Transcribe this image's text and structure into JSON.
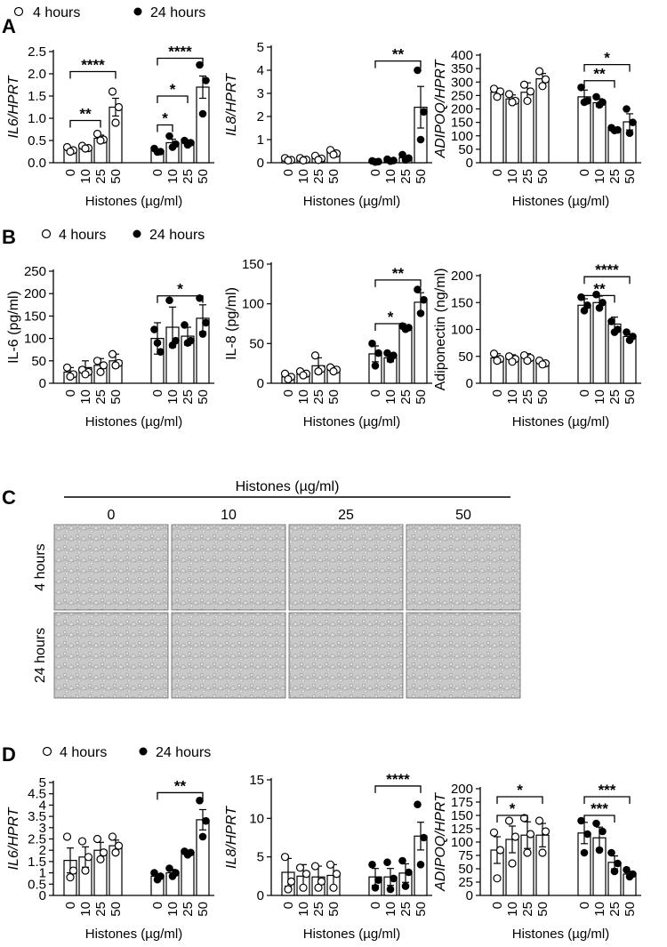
{
  "legend": {
    "open_label": "4 hours",
    "closed_label": "24 hours"
  },
  "panel_letters": {
    "A": "A",
    "B": "B",
    "C": "C",
    "D": "D"
  },
  "xlabel": "Histones (µg/ml)",
  "panel_c": {
    "header": "Histones (µg/ml)",
    "columns": [
      "0",
      "10",
      "25",
      "50"
    ],
    "rows": [
      "4 hours",
      "24 hours"
    ]
  },
  "chart_data": [
    {
      "id": "A1",
      "type": "bar",
      "ylabel": "IL6/HPRT",
      "italic": true,
      "ylim": [
        0,
        2.5
      ],
      "yticks": [
        0,
        0.5,
        1,
        1.5,
        2,
        2.5
      ],
      "yticklabels": [
        "0.0",
        "0.5",
        "1.0",
        "1.5",
        "2.0",
        "2.5"
      ],
      "categories": [
        "0",
        "10",
        "25",
        "50"
      ],
      "series": [
        {
          "name": "4 hours",
          "values": [
            0.3,
            0.35,
            0.55,
            1.25
          ],
          "err": [
            0.05,
            0.04,
            0.07,
            0.2
          ],
          "points": [
            [
              0.35,
              0.28,
              0.25
            ],
            [
              0.38,
              0.33,
              0.32
            ],
            [
              0.65,
              0.52,
              0.5
            ],
            [
              1.6,
              1.25,
              0.9
            ]
          ]
        },
        {
          "name": "24 hours",
          "values": [
            0.27,
            0.45,
            0.45,
            1.7
          ],
          "err": [
            0.04,
            0.08,
            0.06,
            0.25
          ],
          "points": [
            [
              0.32,
              0.25,
              0.24
            ],
            [
              0.6,
              0.42,
              0.35
            ],
            [
              0.5,
              0.45,
              0.4
            ],
            [
              2.2,
              1.85,
              1.1
            ]
          ]
        }
      ],
      "sig": [
        {
          "s": 0,
          "a": 0,
          "b": 2,
          "label": "**",
          "level": 0.95
        },
        {
          "s": 0,
          "a": 0,
          "b": 3,
          "label": "****",
          "level": 2.05
        },
        {
          "s": 1,
          "a": 0,
          "b": 1,
          "label": "*",
          "level": 0.85
        },
        {
          "s": 1,
          "a": 0,
          "b": 2,
          "label": "*",
          "level": 1.5
        },
        {
          "s": 1,
          "a": 0,
          "b": 3,
          "label": "****",
          "level": 2.35
        }
      ]
    },
    {
      "id": "A2",
      "type": "bar",
      "ylabel": "IL8/HPRT",
      "italic": true,
      "ylim": [
        0,
        5
      ],
      "yticks": [
        0,
        1,
        2,
        3,
        4,
        5
      ],
      "yticklabels": [
        "0",
        "1",
        "2",
        "3",
        "4",
        "5"
      ],
      "categories": [
        "0",
        "10",
        "25",
        "50"
      ],
      "series": [
        {
          "name": "4 hours",
          "values": [
            0.15,
            0.15,
            0.2,
            0.45
          ],
          "err": [
            0.05,
            0.05,
            0.07,
            0.1
          ],
          "points": [
            [
              0.2,
              0.12,
              0.1
            ],
            [
              0.2,
              0.13,
              0.1
            ],
            [
              0.3,
              0.18,
              0.12
            ],
            [
              0.55,
              0.4,
              0.35
            ]
          ]
        },
        {
          "name": "24 hours",
          "values": [
            0.05,
            0.1,
            0.22,
            2.4
          ],
          "err": [
            0.02,
            0.03,
            0.08,
            0.9
          ],
          "points": [
            [
              0.08,
              0.05,
              0.03
            ],
            [
              0.15,
              0.1,
              0.07
            ],
            [
              0.35,
              0.2,
              0.12
            ],
            [
              4.0,
              2.2,
              1.0
            ]
          ]
        }
      ],
      "sig": [
        {
          "s": 1,
          "a": 0,
          "b": 3,
          "label": "**",
          "level": 4.4
        }
      ]
    },
    {
      "id": "A3",
      "type": "bar",
      "ylabel": "ADIPOQ/HPRT",
      "italic": true,
      "ylim": [
        0,
        400
      ],
      "yticks": [
        0,
        50,
        100,
        150,
        200,
        250,
        300,
        350,
        400
      ],
      "yticklabels": [
        "0",
        "50",
        "100",
        "150",
        "200",
        "250",
        "300",
        "350",
        "400"
      ],
      "categories": [
        "0",
        "10",
        "25",
        "50"
      ],
      "series": [
        {
          "name": "4 hours",
          "values": [
            262,
            237,
            262,
            312
          ],
          "err": [
            15,
            15,
            35,
            20
          ],
          "points": [
            [
              275,
              265,
              245
            ],
            [
              255,
              230,
              225
            ],
            [
              290,
              265,
              230
            ],
            [
              340,
              310,
              285
            ]
          ]
        },
        {
          "name": "24 hours",
          "values": [
            245,
            223,
            125,
            152
          ],
          "err": [
            25,
            15,
            5,
            30
          ],
          "points": [
            [
              280,
              230,
              225
            ],
            [
              245,
              225,
              215
            ],
            [
              130,
              122,
              120
            ],
            [
              200,
              150,
              110
            ]
          ]
        }
      ],
      "sig": [
        {
          "s": 1,
          "a": 0,
          "b": 2,
          "label": "**",
          "level": 305
        },
        {
          "s": 1,
          "a": 0,
          "b": 3,
          "label": "*",
          "level": 365
        }
      ]
    },
    {
      "id": "B1",
      "type": "bar",
      "ylabel": "IL-6 (pg/ml)",
      "italic": false,
      "ylim": [
        0,
        250
      ],
      "yticks": [
        0,
        50,
        100,
        150,
        200,
        250
      ],
      "yticklabels": [
        "0",
        "50",
        "100",
        "150",
        "200",
        "250"
      ],
      "categories": [
        "0",
        "10",
        "25",
        "50"
      ],
      "series": [
        {
          "name": "4 hours",
          "values": [
            25,
            35,
            40,
            50
          ],
          "err": [
            10,
            15,
            15,
            15
          ],
          "points": [
            [
              35,
              20,
              15
            ],
            [
              30,
              25,
              20
            ],
            [
              50,
              40,
              25
            ],
            [
              65,
              45,
              40
            ]
          ]
        },
        {
          "name": "24 hours",
          "values": [
            100,
            125,
            105,
            145
          ],
          "err": [
            35,
            45,
            20,
            30
          ],
          "points": [
            [
              120,
              70,
              90
            ],
            [
              185,
              95,
              85
            ],
            [
              130,
              95,
              90
            ],
            [
              190,
              135,
              110
            ]
          ]
        }
      ],
      "sig": [
        {
          "s": 1,
          "a": 0,
          "b": 3,
          "label": "*",
          "level": 195
        }
      ]
    },
    {
      "id": "B2",
      "type": "bar",
      "ylabel": "IL-8 (pg/ml)",
      "italic": false,
      "ylim": [
        0,
        150
      ],
      "yticks": [
        0,
        50,
        100,
        150
      ],
      "yticklabels": [
        "0",
        "50",
        "100",
        "150"
      ],
      "categories": [
        "0",
        "10",
        "25",
        "50"
      ],
      "series": [
        {
          "name": "4 hours",
          "values": [
            8,
            12,
            22,
            18
          ],
          "err": [
            3,
            4,
            10,
            3
          ],
          "points": [
            [
              12,
              8,
              5
            ],
            [
              15,
              12,
              10
            ],
            [
              35,
              18,
              15
            ],
            [
              20,
              17,
              15
            ]
          ]
        },
        {
          "name": "24 hours",
          "values": [
            37,
            32,
            70,
            102
          ],
          "err": [
            10,
            5,
            2,
            12
          ],
          "points": [
            [
              50,
              38,
              22
            ],
            [
              38,
              35,
              30
            ],
            [
              72,
              70,
              68
            ],
            [
              118,
              105,
              88
            ]
          ]
        }
      ],
      "sig": [
        {
          "s": 1,
          "a": 0,
          "b": 2,
          "label": "*",
          "level": 75
        },
        {
          "s": 1,
          "a": 0,
          "b": 3,
          "label": "**",
          "level": 130
        }
      ]
    },
    {
      "id": "B3",
      "type": "bar",
      "ylabel": "Adiponectin (ng/ml)",
      "italic": false,
      "ylim": [
        0,
        200
      ],
      "yticks": [
        0,
        50,
        100,
        150,
        200
      ],
      "yticklabels": [
        "0",
        "50",
        "100",
        "150",
        "200"
      ],
      "categories": [
        "0",
        "10",
        "25",
        "50"
      ],
      "series": [
        {
          "name": "4 hours",
          "values": [
            47,
            47,
            48,
            38
          ],
          "err": [
            8,
            6,
            7,
            3
          ],
          "points": [
            [
              55,
              45,
              42
            ],
            [
              50,
              45,
              40
            ],
            [
              52,
              47,
              42
            ],
            [
              42,
              37,
              35
            ]
          ]
        },
        {
          "name": "24 hours",
          "values": [
            145,
            150,
            110,
            87
          ],
          "err": [
            12,
            12,
            13,
            5
          ],
          "points": [
            [
              160,
              145,
              135
            ],
            [
              165,
              150,
              140
            ],
            [
              115,
              100,
              95
            ],
            [
              95,
              87,
              80
            ]
          ]
        }
      ],
      "sig": [
        {
          "s": 1,
          "a": 0,
          "b": 2,
          "label": "**",
          "level": 163
        },
        {
          "s": 1,
          "a": 0,
          "b": 3,
          "label": "****",
          "level": 198
        }
      ]
    },
    {
      "id": "D1",
      "type": "bar",
      "ylabel": "IL6/HPRT",
      "italic": true,
      "ylim": [
        0,
        5
      ],
      "yticks": [
        0,
        0.5,
        1,
        1.5,
        2,
        2.5,
        3,
        3.5,
        4,
        4.5,
        5
      ],
      "yticklabels": [
        "0",
        "0.5",
        "1",
        "1.5",
        "2",
        "2.5",
        "3",
        "3.5",
        "4",
        "4.5",
        "5"
      ],
      "categories": [
        "0",
        "10",
        "25",
        "50"
      ],
      "series": [
        {
          "name": "4 hours",
          "values": [
            1.55,
            1.7,
            2.0,
            2.2
          ],
          "err": [
            0.55,
            0.45,
            0.35,
            0.25
          ],
          "points": [
            [
              2.6,
              1.1,
              0.8
            ],
            [
              2.4,
              1.7,
              1.1
            ],
            [
              2.5,
              1.9,
              1.6
            ],
            [
              2.6,
              2.2,
              1.9
            ]
          ]
        },
        {
          "name": "24 hours",
          "values": [
            0.85,
            1.0,
            1.9,
            3.35
          ],
          "err": [
            0.1,
            0.15,
            0.1,
            0.45
          ],
          "points": [
            [
              1.0,
              0.85,
              0.7
            ],
            [
              1.2,
              1.0,
              0.85
            ],
            [
              1.95,
              1.9,
              1.8
            ],
            [
              4.2,
              3.3,
              2.6
            ]
          ]
        }
      ],
      "sig": [
        {
          "s": 1,
          "a": 0,
          "b": 3,
          "label": "**",
          "level": 4.55
        }
      ]
    },
    {
      "id": "D2",
      "type": "bar",
      "ylabel": "IL8/HPRT",
      "italic": true,
      "ylim": [
        0,
        15
      ],
      "yticks": [
        0,
        5,
        10,
        15
      ],
      "yticklabels": [
        "0",
        "5",
        "10",
        "15"
      ],
      "categories": [
        "0",
        "10",
        "25",
        "50"
      ],
      "series": [
        {
          "name": "4 hours",
          "values": [
            3.0,
            2.5,
            2.4,
            2.6
          ],
          "err": [
            1.8,
            1.5,
            1.4,
            1.4
          ],
          "points": [
            [
              5.0,
              1.8,
              0.8
            ],
            [
              3.6,
              2.8,
              1.0
            ],
            [
              3.8,
              1.8,
              1.0
            ],
            [
              4.0,
              2.8,
              1.0
            ]
          ]
        },
        {
          "name": "24 hours",
          "values": [
            2.4,
            2.4,
            2.9,
            7.7
          ],
          "err": [
            1.1,
            1.1,
            1.2,
            1.8
          ],
          "points": [
            [
              4.0,
              2.0,
              1.0
            ],
            [
              4.3,
              2.2,
              0.8
            ],
            [
              4.5,
              3.0,
              1.2
            ],
            [
              11.8,
              7.5,
              4.0
            ]
          ]
        }
      ],
      "sig": [
        {
          "s": 1,
          "a": 0,
          "b": 3,
          "label": "****",
          "level": 14.2
        }
      ]
    },
    {
      "id": "D3",
      "type": "bar",
      "ylabel": "ADIPOQ/HPRT",
      "italic": true,
      "ylim": [
        0,
        200
      ],
      "yticks": [
        0,
        25,
        50,
        75,
        100,
        125,
        150,
        175,
        200
      ],
      "yticklabels": [
        "0",
        "25",
        "50",
        "75",
        "100",
        "125",
        "150",
        "175",
        "200"
      ],
      "categories": [
        "0",
        "10",
        "25",
        "50"
      ],
      "series": [
        {
          "name": "4 hours",
          "values": [
            85,
            105,
            113,
            113
          ],
          "err": [
            25,
            25,
            25,
            22
          ],
          "points": [
            [
              118,
              85,
              32
            ],
            [
              140,
              110,
              60
            ],
            [
              145,
              115,
              80
            ],
            [
              140,
              120,
              80
            ]
          ]
        },
        {
          "name": "24 hours",
          "values": [
            117,
            108,
            62,
            40
          ],
          "err": [
            20,
            20,
            12,
            5
          ],
          "points": [
            [
              140,
              115,
              80
            ],
            [
              135,
              120,
              85
            ],
            [
              80,
              60,
              45
            ],
            [
              48,
              40,
              35
            ]
          ]
        }
      ],
      "sig": [
        {
          "s": 0,
          "a": 0,
          "b": 2,
          "label": "*",
          "level": 150
        },
        {
          "s": 0,
          "a": 0,
          "b": 3,
          "label": "*",
          "level": 185
        },
        {
          "s": 1,
          "a": 0,
          "b": 2,
          "label": "***",
          "level": 150
        },
        {
          "s": 1,
          "a": 0,
          "b": 3,
          "label": "***",
          "level": 185
        }
      ]
    }
  ]
}
